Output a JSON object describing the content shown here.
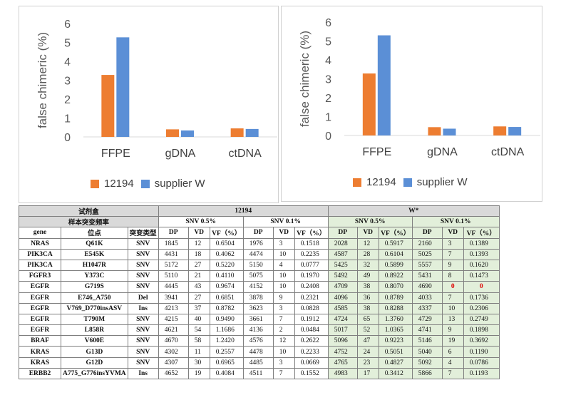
{
  "chart_data": [
    {
      "type": "bar",
      "ylabel": "false chimeric (%)",
      "categories": [
        "FFPE",
        "gDNA",
        "ctDNA"
      ],
      "ylim": [
        0,
        6
      ],
      "yticks": [
        "0",
        "1",
        "2",
        "3",
        "4",
        "5",
        "6"
      ],
      "series": [
        {
          "name": "12194",
          "color": "#ed7d31",
          "values": [
            3.28,
            0.4,
            0.45
          ]
        },
        {
          "name": "supplier W",
          "color": "#5b8fd6",
          "values": [
            5.27,
            0.34,
            0.42
          ]
        }
      ],
      "legend": "bottom"
    },
    {
      "type": "bar",
      "ylabel": "false chimeric (%)",
      "categories": [
        "FFPE",
        "gDNA",
        "ctDNA"
      ],
      "ylim": [
        0,
        6
      ],
      "yticks": [
        "0",
        "1",
        "2",
        "3",
        "4",
        "5",
        "6"
      ],
      "series": [
        {
          "name": "12194",
          "color": "#ed7d31",
          "values": [
            3.28,
            0.44,
            0.48
          ]
        },
        {
          "name": "supplier W",
          "color": "#5b8fd6",
          "values": [
            5.3,
            0.36,
            0.45
          ]
        }
      ],
      "legend": "bottom"
    }
  ],
  "table": {
    "kit_label": "试剂盒",
    "freq_label": "样本突变频率",
    "group_a": "12194",
    "group_b": "W*",
    "snv_a": "SNV 0.5%",
    "snv_b": "SNV 0.1%",
    "headers": [
      "gene",
      "位点",
      "突变类型",
      "DP",
      "VD",
      "VF（%）"
    ],
    "rows": [
      {
        "gene": "NRAS",
        "site": "Q61K",
        "type": "SNV",
        "vals": [
          "1845",
          "12",
          "0.6504",
          "1976",
          "3",
          "0.1518",
          "2028",
          "12",
          "0.5917",
          "2160",
          "3",
          "0.1389"
        ]
      },
      {
        "gene": "PIK3CA",
        "site": "E545K",
        "type": "SNV",
        "vals": [
          "4431",
          "18",
          "0.4062",
          "4474",
          "10",
          "0.2235",
          "4587",
          "28",
          "0.6104",
          "5025",
          "7",
          "0.1393"
        ]
      },
      {
        "gene": "PIK3CA",
        "site": "H1047R",
        "type": "SNV",
        "vals": [
          "5172",
          "27",
          "0.5220",
          "5150",
          "4",
          "0.0777",
          "5425",
          "32",
          "0.5899",
          "5557",
          "9",
          "0.1620"
        ]
      },
      {
        "gene": "FGFR3",
        "site": "Y373C",
        "type": "SNV",
        "vals": [
          "5110",
          "21",
          "0.4110",
          "5075",
          "10",
          "0.1970",
          "5492",
          "49",
          "0.8922",
          "5431",
          "8",
          "0.1473"
        ]
      },
      {
        "gene": "EGFR",
        "site": "G719S",
        "type": "SNV",
        "vals": [
          "4445",
          "43",
          "0.9674",
          "4152",
          "10",
          "0.2408",
          "4709",
          "38",
          "0.8070",
          "4690",
          "0",
          "0"
        ]
      },
      {
        "gene": "EGFR",
        "site": "E746_A750",
        "type": "Del",
        "vals": [
          "3941",
          "27",
          "0.6851",
          "3878",
          "9",
          "0.2321",
          "4096",
          "36",
          "0.8789",
          "4033",
          "7",
          "0.1736"
        ]
      },
      {
        "gene": "EGFR",
        "site": "V769_D770insASV",
        "type": "Ins",
        "vals": [
          "4213",
          "37",
          "0.8782",
          "3623",
          "3",
          "0.0828",
          "4585",
          "38",
          "0.8288",
          "4337",
          "10",
          "0.2306"
        ]
      },
      {
        "gene": "EGFR",
        "site": "T790M",
        "type": "SNV",
        "vals": [
          "4215",
          "40",
          "0.9490",
          "3661",
          "7",
          "0.1912",
          "4724",
          "65",
          "1.3760",
          "4729",
          "13",
          "0.2749"
        ]
      },
      {
        "gene": "EGFR",
        "site": "L858R",
        "type": "SNV",
        "vals": [
          "4621",
          "54",
          "1.1686",
          "4136",
          "2",
          "0.0484",
          "5017",
          "52",
          "1.0365",
          "4741",
          "9",
          "0.1898"
        ]
      },
      {
        "gene": "BRAF",
        "site": "V600E",
        "type": "SNV",
        "vals": [
          "4670",
          "58",
          "1.2420",
          "4576",
          "12",
          "0.2622",
          "5096",
          "47",
          "0.9223",
          "5146",
          "19",
          "0.3692"
        ]
      },
      {
        "gene": "KRAS",
        "site": "G13D",
        "type": "SNV",
        "vals": [
          "4302",
          "11",
          "0.2557",
          "4478",
          "10",
          "0.2233",
          "4752",
          "24",
          "0.5051",
          "5040",
          "6",
          "0.1190"
        ]
      },
      {
        "gene": "KRAS",
        "site": "G12D",
        "type": "SNV",
        "vals": [
          "4307",
          "30",
          "0.6965",
          "4485",
          "3",
          "0.0669",
          "4765",
          "23",
          "0.4827",
          "5092",
          "4",
          "0.0786"
        ]
      },
      {
        "gene": "ERBB2",
        "site": "A775_G776insYVMA",
        "type": "Ins",
        "vals": [
          "4652",
          "19",
          "0.4084",
          "4511",
          "7",
          "0.1552",
          "4983",
          "17",
          "0.3412",
          "5866",
          "7",
          "0.1193"
        ]
      }
    ]
  }
}
